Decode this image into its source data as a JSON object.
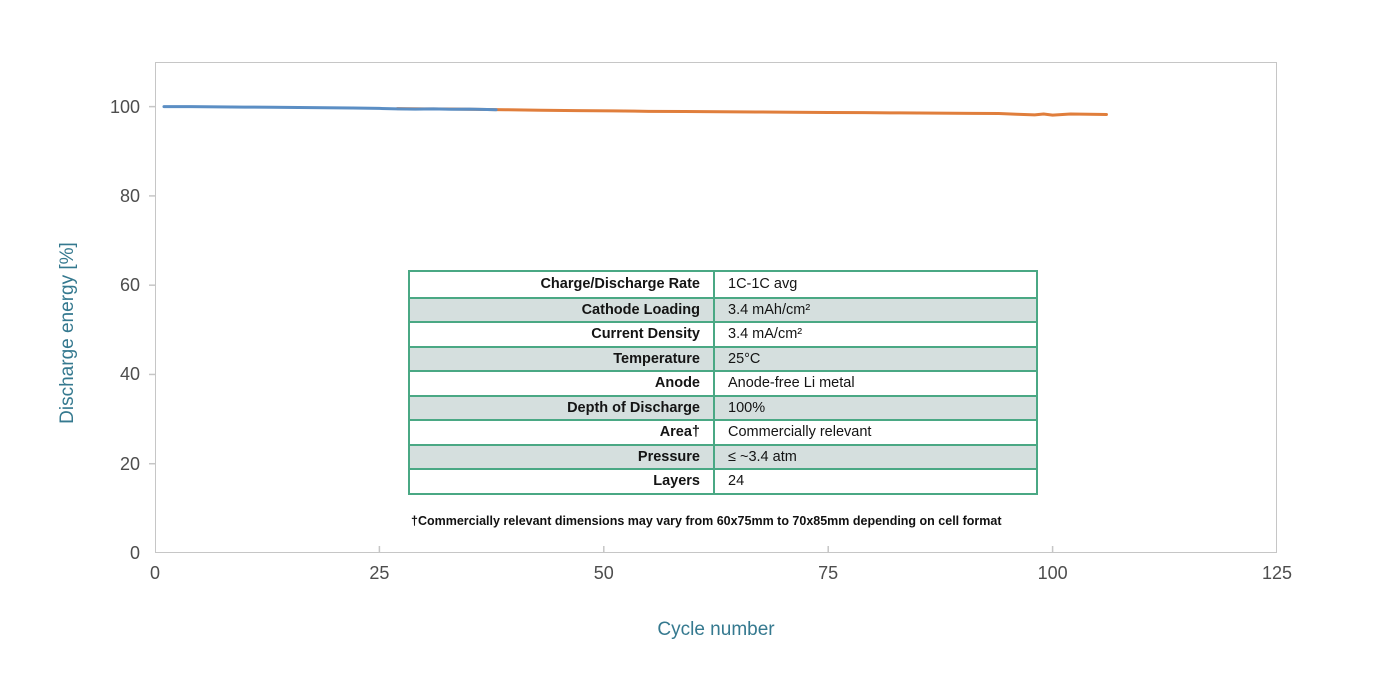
{
  "figure": {
    "background": "#ffffff"
  },
  "chart_data": {
    "type": "line",
    "title": "",
    "xlabel": "Cycle number",
    "ylabel": "Discharge energy [%]",
    "xlim": [
      0,
      125
    ],
    "ylim": [
      0,
      110
    ],
    "x_ticks": [
      0,
      25,
      50,
      75,
      100,
      125
    ],
    "y_ticks": [
      0,
      20,
      40,
      60,
      80,
      100
    ],
    "grid": false,
    "legend_position": "none",
    "series": [
      {
        "name": "cycling-segment-1",
        "color": "#5b8ec4",
        "points": [
          [
            1,
            100
          ],
          [
            4,
            100
          ],
          [
            7,
            99.95
          ],
          [
            10,
            99.9
          ],
          [
            13,
            99.85
          ],
          [
            16,
            99.8
          ],
          [
            19,
            99.75
          ],
          [
            22,
            99.7
          ],
          [
            25,
            99.6
          ],
          [
            27,
            99.5
          ],
          [
            29,
            99.45
          ],
          [
            31,
            99.5
          ],
          [
            33,
            99.42
          ],
          [
            35,
            99.45
          ],
          [
            37,
            99.35
          ],
          [
            38,
            99.3
          ]
        ]
      },
      {
        "name": "cycling-segment-2",
        "color": "#e07e3c",
        "points": [
          [
            27,
            99.55
          ],
          [
            30,
            99.5
          ],
          [
            33,
            99.47
          ],
          [
            36,
            99.38
          ],
          [
            39,
            99.3
          ],
          [
            43,
            99.2
          ],
          [
            47,
            99.1
          ],
          [
            51,
            99.05
          ],
          [
            55,
            98.95
          ],
          [
            59,
            98.9
          ],
          [
            63,
            98.85
          ],
          [
            67,
            98.8
          ],
          [
            71,
            98.75
          ],
          [
            75,
            98.7
          ],
          [
            79,
            98.65
          ],
          [
            83,
            98.6
          ],
          [
            87,
            98.55
          ],
          [
            91,
            98.5
          ],
          [
            94,
            98.45
          ],
          [
            96,
            98.3
          ],
          [
            98,
            98.15
          ],
          [
            99,
            98.35
          ],
          [
            100,
            98.1
          ],
          [
            102,
            98.35
          ],
          [
            104,
            98.3
          ],
          [
            106,
            98.25
          ]
        ]
      }
    ]
  },
  "axes_style": {
    "tick_label_color": "#4d4d4d",
    "axis_line_color": "#c6c6c6",
    "axis_title_color": "#35798f"
  },
  "table": {
    "border_color": "#4aa884",
    "band_color": "#d5dfde",
    "rows": [
      {
        "label": "Charge/Discharge Rate",
        "value": "1C-1C avg"
      },
      {
        "label": "Cathode Loading",
        "value": "3.4 mAh/cm²"
      },
      {
        "label": "Current Density",
        "value": "3.4 mA/cm²"
      },
      {
        "label": "Temperature",
        "value": "25°C"
      },
      {
        "label": "Anode",
        "value": "Anode-free Li metal"
      },
      {
        "label": "Depth of Discharge",
        "value": "100%"
      },
      {
        "label": "Area†",
        "value": "Commercially relevant"
      },
      {
        "label": "Pressure",
        "value": "≤ ~3.4 atm"
      },
      {
        "label": "Layers",
        "value": "24"
      }
    ],
    "footnote": "†Commercially relevant dimensions may vary from 60x75mm to 70x85mm depending on cell format"
  }
}
